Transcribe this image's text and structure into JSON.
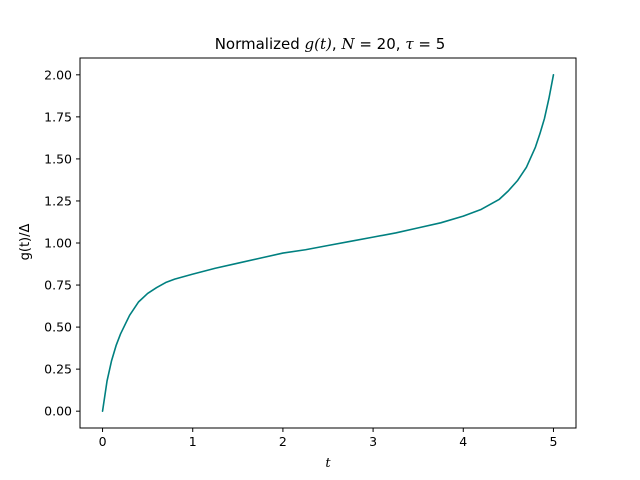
{
  "chart_data": {
    "type": "line",
    "title_parts": {
      "prefix": "Normalized ",
      "func": "g(t)",
      "sep1": ", ",
      "n_sym": "N",
      "n_val": " = 20",
      "sep2": ", ",
      "tau_sym": "τ",
      "tau_val": " = 5"
    },
    "xlabel": "t",
    "ylabel": "g(t)/Δ",
    "xlim": [
      -0.25,
      5.25
    ],
    "ylim": [
      -0.1,
      2.1
    ],
    "xticks": [
      0,
      1,
      2,
      3,
      4,
      5
    ],
    "xtick_labels": [
      "0",
      "1",
      "2",
      "3",
      "4",
      "5"
    ],
    "yticks": [
      0.0,
      0.25,
      0.5,
      0.75,
      1.0,
      1.25,
      1.5,
      1.75,
      2.0
    ],
    "ytick_labels": [
      "0.00",
      "0.25",
      "0.50",
      "0.75",
      "1.00",
      "1.25",
      "1.50",
      "1.75",
      "2.00"
    ],
    "grid": false,
    "series": [
      {
        "color": "#008080",
        "x": [
          0.0,
          0.05,
          0.1,
          0.15,
          0.2,
          0.3,
          0.4,
          0.5,
          0.6,
          0.7,
          0.8,
          0.9,
          1.0,
          1.25,
          1.5,
          1.75,
          2.0,
          2.25,
          2.5,
          2.75,
          3.0,
          3.25,
          3.5,
          3.75,
          4.0,
          4.2,
          4.4,
          4.5,
          4.6,
          4.7,
          4.8,
          4.85,
          4.9,
          4.95,
          5.0
        ],
        "y": [
          0.0,
          0.18,
          0.3,
          0.39,
          0.46,
          0.57,
          0.65,
          0.7,
          0.735,
          0.765,
          0.785,
          0.8,
          0.815,
          0.85,
          0.88,
          0.91,
          0.94,
          0.96,
          0.985,
          1.01,
          1.035,
          1.06,
          1.09,
          1.12,
          1.16,
          1.2,
          1.26,
          1.31,
          1.37,
          1.45,
          1.57,
          1.65,
          1.74,
          1.86,
          2.0
        ]
      }
    ]
  }
}
